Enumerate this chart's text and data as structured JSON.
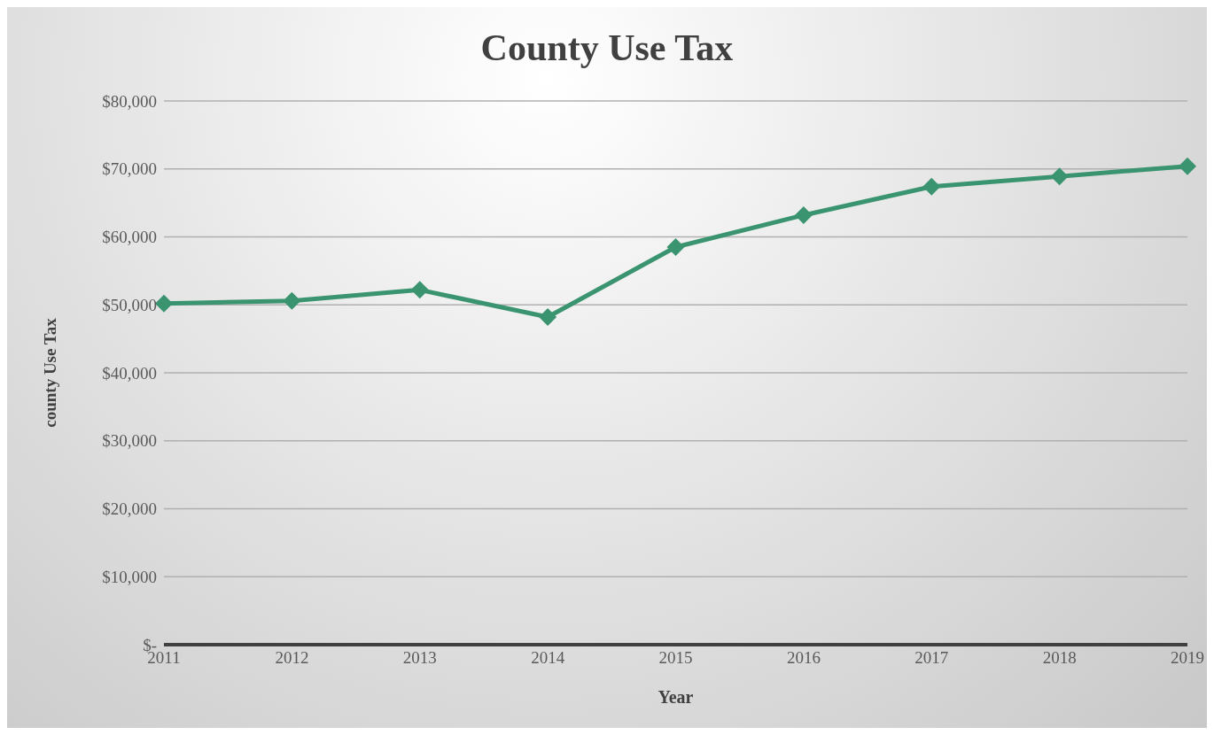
{
  "chart_data": {
    "type": "line",
    "title": "County Use Tax",
    "xlabel": "Year",
    "ylabel": "county Use Tax",
    "categories": [
      "2011",
      "2012",
      "2013",
      "2014",
      "2015",
      "2016",
      "2017",
      "2018",
      "2019"
    ],
    "series": [
      {
        "color": "#3a9470",
        "values": [
          50200,
          50600,
          52200,
          48200,
          58500,
          63200,
          67400,
          68900,
          70400
        ]
      }
    ],
    "ylim": [
      0,
      80000
    ],
    "yticks": [
      {
        "value": 0,
        "label": "$-"
      },
      {
        "value": 10000,
        "label": "$10,000"
      },
      {
        "value": 20000,
        "label": "$20,000"
      },
      {
        "value": 30000,
        "label": "$30,000"
      },
      {
        "value": 40000,
        "label": "$40,000"
      },
      {
        "value": 50000,
        "label": "$50,000"
      },
      {
        "value": 60000,
        "label": "$60,000"
      },
      {
        "value": 70000,
        "label": "$70,000"
      },
      {
        "value": 80000,
        "label": "$80,000"
      }
    ],
    "grid": "y",
    "legend": false,
    "marker": "diamond",
    "line_style": "solid"
  }
}
